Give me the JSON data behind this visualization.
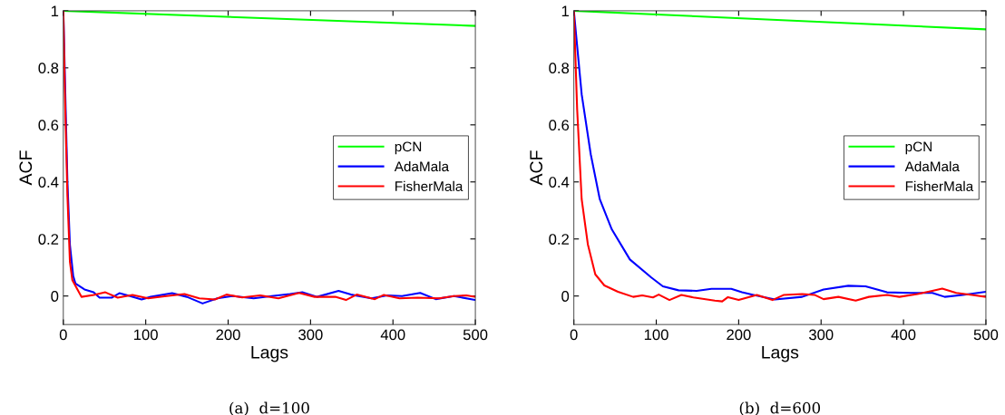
{
  "chart_data": [
    {
      "type": "line",
      "xlabel": "Lags",
      "ylabel": "ACF",
      "annotations": [
        "(a)  d=100"
      ],
      "xlim": [
        0,
        500
      ],
      "ylim": [
        -0.1,
        1
      ],
      "xticks": [
        0,
        100,
        200,
        300,
        400,
        500
      ],
      "yticks": [
        0,
        0.2,
        0.4,
        0.6,
        0.8,
        1
      ],
      "grid": false,
      "legend": "right",
      "line_style": "solid",
      "series": [
        {
          "name": "pCN",
          "color": "#00ff00",
          "x": [
            0,
            500
          ],
          "values": [
            1,
            0.947
          ]
        },
        {
          "name": "AdaMala",
          "color": "#0000ff",
          "x": [
            0,
            5,
            8,
            12,
            14.7,
            25.7,
            36.7,
            44,
            58.7,
            68,
            81,
            95,
            106,
            132,
            150,
            169,
            187,
            206,
            231,
            253,
            275,
            290,
            308,
            334,
            349,
            374,
            393,
            411,
            433,
            452,
            474,
            500
          ],
          "values": [
            1,
            0.4,
            0.18,
            0.07,
            0.044,
            0.023,
            0.013,
            -0.006,
            -0.006,
            0.01,
            0,
            -0.012,
            -0.003,
            0.01,
            -0.003,
            -0.026,
            -0.008,
            0,
            -0.008,
            0,
            0.007,
            0.013,
            -0.003,
            0.018,
            0.005,
            -0.008,
            0.002,
            0,
            0.011,
            -0.011,
            0,
            -0.014
          ]
        },
        {
          "name": "FisherMala",
          "color": "#ff0000",
          "x": [
            0,
            2,
            5,
            8,
            11,
            22,
            37,
            51,
            66,
            84,
            103,
            125,
            147,
            165,
            184,
            198,
            217,
            239,
            261,
            286,
            305,
            330,
            343,
            356,
            378,
            389,
            408,
            430,
            456,
            474,
            489,
            500
          ],
          "values": [
            1,
            0.7,
            0.35,
            0.12,
            0.055,
            -0.003,
            0.004,
            0.013,
            -0.006,
            0.004,
            -0.008,
            0,
            0.007,
            -0.008,
            -0.012,
            0.005,
            -0.005,
            0.002,
            -0.008,
            0.011,
            -0.003,
            -0.003,
            -0.014,
            0.005,
            -0.011,
            0.004,
            -0.008,
            -0.006,
            -0.008,
            0,
            0.002,
            -0.003
          ]
        }
      ]
    },
    {
      "type": "line",
      "xlabel": "Lags",
      "ylabel": "ACF",
      "annotations": [
        "(b)  d=600"
      ],
      "xlim": [
        0,
        500
      ],
      "ylim": [
        -0.1,
        1
      ],
      "xticks": [
        0,
        100,
        200,
        300,
        400,
        500
      ],
      "yticks": [
        0,
        0.2,
        0.4,
        0.6,
        0.8,
        1
      ],
      "grid": false,
      "legend": "right",
      "line_style": "solid",
      "series": [
        {
          "name": "pCN",
          "color": "#00ff00",
          "x": [
            0,
            500
          ],
          "values": [
            1,
            0.935
          ]
        },
        {
          "name": "AdaMala",
          "color": "#0000ff",
          "x": [
            0,
            9.5,
            20.5,
            31.5,
            46,
            68,
            94,
            108,
            127,
            149,
            167,
            191,
            204,
            218,
            244,
            277,
            303,
            333,
            354,
            380,
            409,
            435,
            450,
            472,
            500
          ],
          "values": [
            1,
            0.707,
            0.497,
            0.339,
            0.234,
            0.128,
            0.065,
            0.034,
            0.02,
            0.018,
            0.025,
            0.025,
            0.013,
            0.004,
            -0.012,
            -0.003,
            0.023,
            0.036,
            0.034,
            0.013,
            0.011,
            0.011,
            -0.003,
            0.004,
            0.015
          ]
        },
        {
          "name": "FisherMala",
          "color": "#ff0000",
          "x": [
            0,
            4,
            9.5,
            17,
            26,
            37,
            53.5,
            72,
            83,
            96,
            103,
            116,
            130.5,
            145,
            171,
            180,
            187,
            200,
            222,
            241,
            255,
            277,
            292,
            303,
            321,
            342,
            358,
            380,
            395,
            417,
            435,
            447,
            464,
            483,
            500
          ],
          "values": [
            1,
            0.655,
            0.339,
            0.181,
            0.076,
            0.037,
            0.015,
            -0.003,
            0.002,
            -0.005,
            0.005,
            -0.014,
            0.004,
            -0.005,
            -0.016,
            -0.019,
            -0.004,
            -0.014,
            0.004,
            -0.014,
            0.004,
            0.007,
            0.004,
            -0.011,
            -0.003,
            -0.016,
            -0.003,
            0.004,
            -0.003,
            0.007,
            0.018,
            0.026,
            0.011,
            0.004,
            -0.003
          ]
        }
      ]
    }
  ]
}
